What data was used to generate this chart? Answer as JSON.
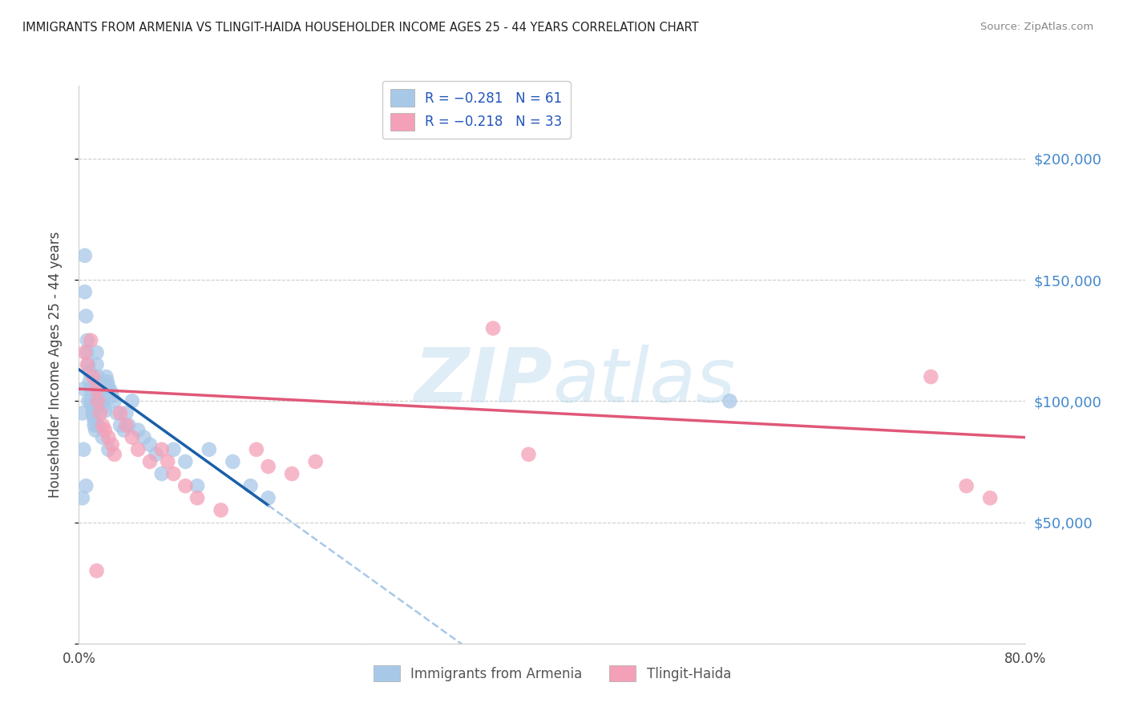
{
  "title": "IMMIGRANTS FROM ARMENIA VS TLINGIT-HAIDA HOUSEHOLDER INCOME AGES 25 - 44 YEARS CORRELATION CHART",
  "source": "Source: ZipAtlas.com",
  "ylabel": "Householder Income Ages 25 - 44 years",
  "xlim": [
    0,
    0.8
  ],
  "ylim": [
    0,
    230000
  ],
  "yticks": [
    0,
    50000,
    100000,
    150000,
    200000
  ],
  "ytick_labels": [
    "",
    "$50,000",
    "$100,000",
    "$150,000",
    "$200,000"
  ],
  "xticks": [
    0.0,
    0.1,
    0.2,
    0.3,
    0.4,
    0.5,
    0.6,
    0.7,
    0.8
  ],
  "series1_color": "#a8c8e8",
  "series2_color": "#f4a0b8",
  "trendline1_color": "#1a5fa8",
  "trendline2_color": "#e05878",
  "dashed_line_color": "#a8c8e8",
  "watermark_color": "#d8eef8",
  "blue_scatter_x": [
    0.003,
    0.004,
    0.005,
    0.005,
    0.006,
    0.007,
    0.007,
    0.008,
    0.009,
    0.009,
    0.01,
    0.01,
    0.011,
    0.012,
    0.012,
    0.013,
    0.013,
    0.014,
    0.015,
    0.015,
    0.016,
    0.016,
    0.017,
    0.018,
    0.019,
    0.02,
    0.021,
    0.022,
    0.023,
    0.024,
    0.025,
    0.027,
    0.028,
    0.03,
    0.032,
    0.035,
    0.038,
    0.04,
    0.042,
    0.045,
    0.05,
    0.055,
    0.06,
    0.065,
    0.07,
    0.08,
    0.09,
    0.1,
    0.11,
    0.13,
    0.145,
    0.16,
    0.004,
    0.008,
    0.012,
    0.016,
    0.02,
    0.025,
    0.55,
    0.003,
    0.006
  ],
  "blue_scatter_y": [
    95000,
    80000,
    160000,
    145000,
    135000,
    125000,
    120000,
    115000,
    112000,
    108000,
    105000,
    100000,
    98000,
    96000,
    94000,
    92000,
    90000,
    88000,
    120000,
    115000,
    110000,
    108000,
    106000,
    104000,
    102000,
    100000,
    98000,
    96000,
    110000,
    108000,
    106000,
    104000,
    102000,
    100000,
    95000,
    90000,
    88000,
    95000,
    90000,
    100000,
    88000,
    85000,
    82000,
    78000,
    70000,
    80000,
    75000,
    65000,
    80000,
    75000,
    65000,
    60000,
    105000,
    100000,
    95000,
    90000,
    85000,
    80000,
    100000,
    60000,
    65000
  ],
  "pink_scatter_x": [
    0.005,
    0.007,
    0.01,
    0.012,
    0.015,
    0.016,
    0.018,
    0.02,
    0.022,
    0.025,
    0.028,
    0.03,
    0.035,
    0.04,
    0.045,
    0.05,
    0.06,
    0.07,
    0.075,
    0.08,
    0.09,
    0.1,
    0.12,
    0.15,
    0.16,
    0.18,
    0.2,
    0.35,
    0.38,
    0.72,
    0.75,
    0.77,
    0.015
  ],
  "pink_scatter_y": [
    120000,
    115000,
    125000,
    110000,
    105000,
    100000,
    95000,
    90000,
    88000,
    85000,
    82000,
    78000,
    95000,
    90000,
    85000,
    80000,
    75000,
    80000,
    75000,
    70000,
    65000,
    60000,
    55000,
    80000,
    73000,
    70000,
    75000,
    130000,
    78000,
    110000,
    65000,
    60000,
    30000
  ],
  "blue_trend_x0": 0.0,
  "blue_trend_x_solid_end": 0.16,
  "blue_trend_x_dashed_end": 0.8,
  "blue_trend_y0": 113000,
  "blue_trend_slope": -350000,
  "pink_trend_y0": 105000,
  "pink_trend_slope": -25000
}
